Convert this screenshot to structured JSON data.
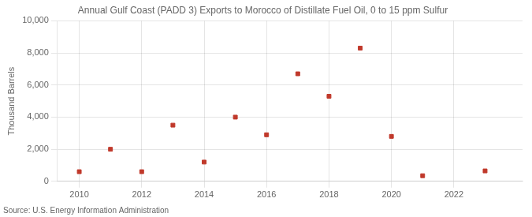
{
  "chart_data": {
    "type": "scatter",
    "title": "Annual Gulf Coast (PADD 3) Exports to Morocco of Distillate Fuel Oil, 0 to 15 ppm Sulfur",
    "ylabel": "Thousand Barrels",
    "source": "Source: U.S. Energy Information Administration",
    "x": [
      2010,
      2011,
      2012,
      2013,
      2014,
      2015,
      2016,
      2017,
      2018,
      2019,
      2020,
      2021,
      2023
    ],
    "values": [
      600,
      2000,
      600,
      3500,
      1200,
      4000,
      2900,
      6700,
      5300,
      8300,
      2800,
      350,
      650
    ],
    "color": "#c0392b",
    "marker": "square",
    "grid": true,
    "xlim": [
      2009.3,
      2024.2
    ],
    "xticks": [
      2010,
      2012,
      2014,
      2016,
      2018,
      2020,
      2022
    ],
    "ylim": [
      0,
      10000
    ],
    "yticks": [
      0,
      {
        "value": 2000,
        "label": "2,000"
      },
      {
        "value": 4000,
        "label": "4,000"
      },
      {
        "value": 6000,
        "label": "6,000"
      },
      {
        "value": 8000,
        "label": "8,000"
      },
      {
        "value": 10000,
        "label": "10,000"
      }
    ]
  }
}
